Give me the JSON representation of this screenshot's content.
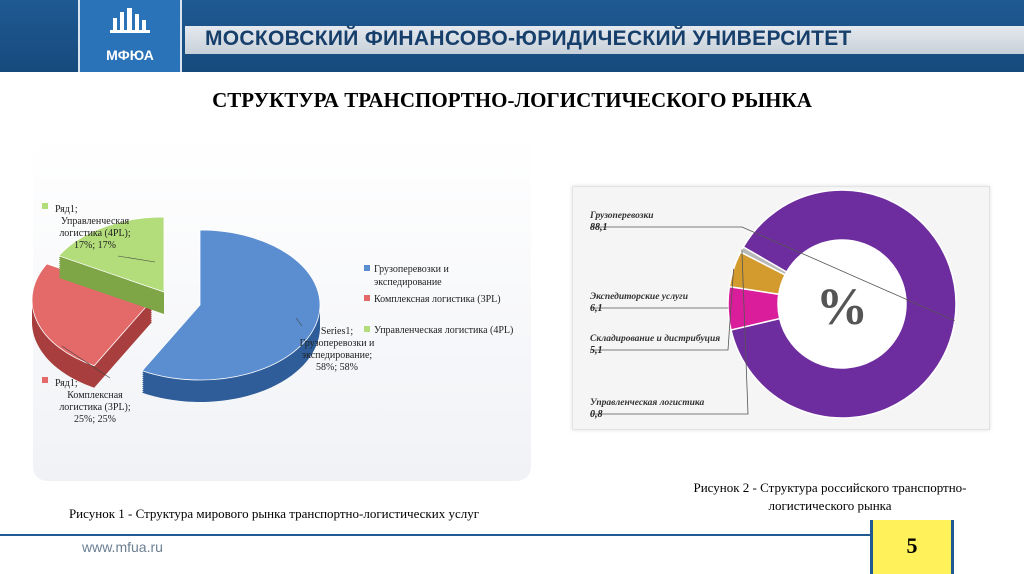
{
  "header": {
    "university": "МОСКОВСКИЙ ФИНАНСОВО-ЮРИДИЧЕСКИЙ УНИВЕРСИТЕТ",
    "logo_text": "МФЮА"
  },
  "page_title": "СТРУКТУРА ТРАНСПОРТНО-ЛОГИСТИЧЕСКОГО РЫНКА",
  "colors": {
    "header": "#1f5a92",
    "blue": "#5b8ed1",
    "red": "#e46a6a",
    "green": "#b3dc7a",
    "purple": "#6e2d9e",
    "magenta": "#d91d9b",
    "orange": "#d39a2e"
  },
  "chart_data": [
    {
      "type": "pie",
      "categories": [
        "Грузоперевозки и экспедирование",
        "Комплексная логистика (3PL)",
        "Управленческая логистика (4PL)"
      ],
      "values": [
        58,
        25,
        17
      ],
      "legend": [
        "Грузоперевозки и экспедирование",
        "Комплексная логистика (3PL)",
        "Управленческая логистика (4PL)"
      ],
      "data_labels": {
        "blue": [
          "Series1;",
          "Грузоперевозки и",
          "экспедирование;",
          "58%; 58%"
        ],
        "red": [
          "Ряд1;",
          "Комплексная",
          "логистика (3PL);",
          "25%; 25%"
        ],
        "green": [
          "Ряд1;",
          "Управленческая",
          "логистика (4PL);",
          "17%; 17%"
        ]
      },
      "legend_placement": "right"
    },
    {
      "type": "pie",
      "center_label": "%",
      "categories": [
        "Грузоперевозки",
        "Экспедиторские услуги",
        "Складирование и дистрибуция",
        "Управленческая логистика"
      ],
      "values": [
        88.1,
        6.1,
        5.1,
        0.8
      ],
      "value_labels": [
        "88,1",
        "6,1",
        "5,1",
        "0,8"
      ]
    }
  ],
  "captions": {
    "fig1": "Рисунок 1 - Структура мирового рынка транспортно-логистических услуг",
    "fig2_line1": "Рисунок 2 - Структура российского транспортно-",
    "fig2_line2": "логистического рынка"
  },
  "footer": {
    "url": "www.mfua.ru",
    "page": "5"
  }
}
